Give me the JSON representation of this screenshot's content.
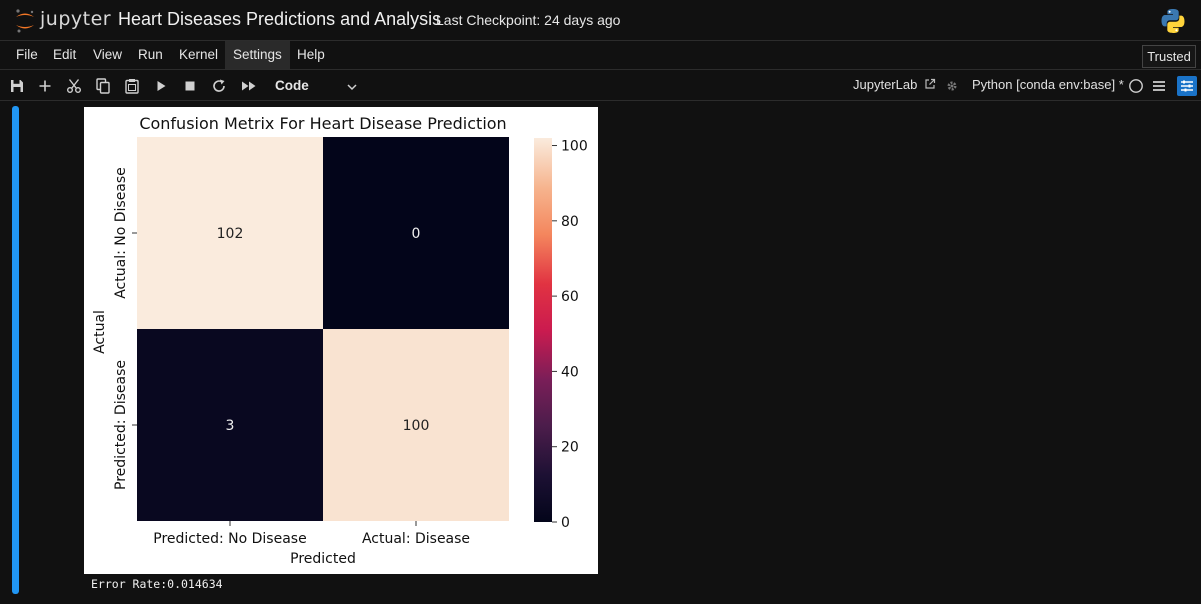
{
  "header": {
    "logo_text": "jupyter",
    "notebook_title": "Heart Diseases Predictions and Analysis",
    "checkpoint": "Last Checkpoint: 24 days ago"
  },
  "menubar": {
    "items": [
      "File",
      "Edit",
      "View",
      "Run",
      "Kernel",
      "Settings",
      "Help"
    ],
    "active": "Settings",
    "trusted_label": "Trusted"
  },
  "toolbar": {
    "icons": [
      "save-icon",
      "add-cell-icon",
      "cut-icon",
      "copy-icon",
      "paste-icon",
      "run-icon",
      "stop-icon",
      "restart-icon",
      "fast-forward-icon"
    ],
    "cell_type": "Code",
    "jupyterlab_link": "JupyterLab",
    "kernel": "Python [conda env:base] *"
  },
  "output": {
    "stdout": "Error Rate:0.014634"
  },
  "chart_data": {
    "type": "heatmap",
    "title": "Confusion Metrix For Heart Disease Prediction",
    "xlabel": "Predicted",
    "ylabel": "Actual",
    "x_categories": [
      "Predicted: No Disease",
      "Actual: Disease"
    ],
    "y_categories": [
      "Actual:  No Disease",
      "Predicted: Disease"
    ],
    "values": [
      [
        102,
        0
      ],
      [
        3,
        100
      ]
    ],
    "colorbar": {
      "min": 0,
      "max": 102,
      "ticks": [
        0,
        20,
        40,
        60,
        80,
        100
      ]
    },
    "colormap": "rocket",
    "colors": {
      "high": "#faebdd",
      "low": "#03051a"
    }
  }
}
